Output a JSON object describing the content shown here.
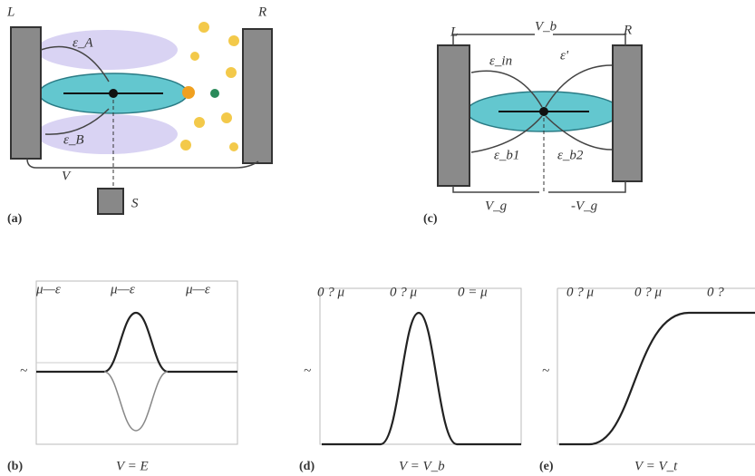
{
  "panel_a": {
    "label": "(a)",
    "left": "L",
    "right": "R",
    "upper": "ε_A",
    "lower": "ε_B",
    "bias": "V",
    "source": "S"
  },
  "panel_c": {
    "label": "(c)",
    "left": "L",
    "right": "R",
    "bias": "V_b",
    "in_left": "ε_in",
    "in_right": "ε'",
    "out_left": "ε_b1",
    "out_right": "ε_b2",
    "gate_left": "V_g",
    "gate_right": "-V_g"
  },
  "panel_b": {
    "label": "(b)",
    "headers": [
      "μ—ε",
      "μ—ε",
      "μ—ε"
    ],
    "ylabel": "~",
    "xlabel": "V = E"
  },
  "panel_d": {
    "label": "(d)",
    "headers": [
      "0 ? μ",
      "0 ? μ",
      "0 = μ"
    ],
    "ylabel": "~",
    "xlabel": "V = V_b"
  },
  "panel_e": {
    "label": "(e)",
    "headers": [
      "0 ? μ",
      "0 ? μ",
      "0 ?"
    ],
    "ylabel": "~",
    "xlabel": "V = V_t"
  }
}
